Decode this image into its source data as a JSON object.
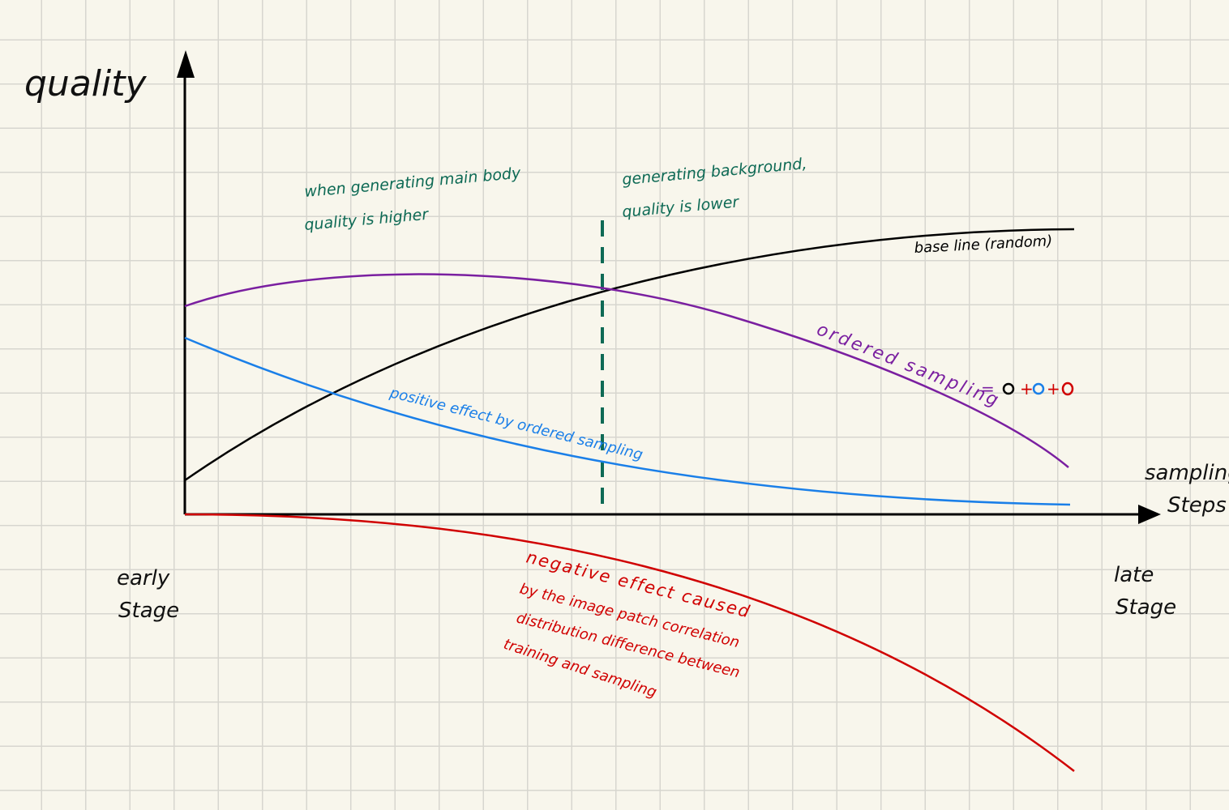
{
  "axes": {
    "y_label": "quality",
    "x_label_line1": "sampling",
    "x_label_line2": "Steps",
    "early_line1": "early",
    "early_line2": "Stage",
    "late_line1": "late",
    "late_line2": "Stage"
  },
  "annotations": {
    "main_body_line1": "when generating main body",
    "main_body_line2": "quality is higher",
    "background_line1": "generating background,",
    "background_line2": "quality is lower",
    "baseline": "base line (random)",
    "ordered": "ordered sampling",
    "formula_eq": "=",
    "formula_plus": "+",
    "positive": "positive effect by ordered sampling",
    "negative_line1": "negative effect caused",
    "negative_line2": "by the image patch correlation",
    "negative_line3": "distribution difference between",
    "negative_line4": "training and sampling"
  },
  "colors": {
    "baseline": "#000000",
    "ordered": "#7a1fa0",
    "positive": "#1a7fe8",
    "negative": "#d00000",
    "divider": "#0e6a55",
    "annotation_green": "#0e6a55"
  }
}
